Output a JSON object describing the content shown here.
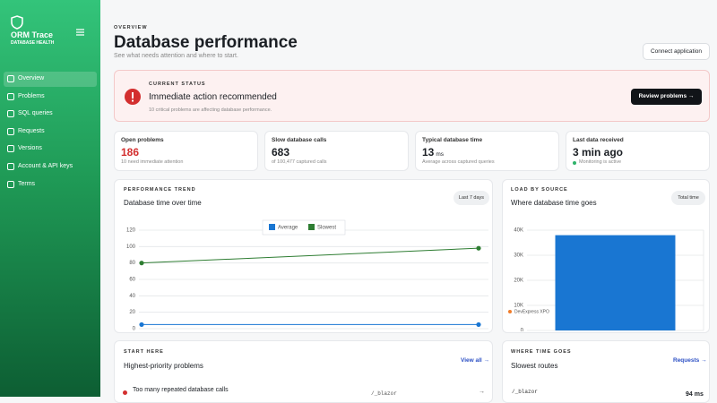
{
  "sidebar": {
    "brand": "ORM Trace",
    "tagline": "DATABASE HEALTH",
    "nav": [
      "Overview",
      "Problems",
      "SQL queries",
      "Requests",
      "Versions",
      "Account & API keys",
      "Terms"
    ]
  },
  "header": {
    "eyebrow": "OVERVIEW",
    "title": "Database performance",
    "subtitle": "See what needs attention and where to start.",
    "button": "Connect application"
  },
  "alert": {
    "eyebrow": "CURRENT STATUS",
    "title": "Immediate action recommended",
    "text": "10 critical problems are affecting database performance.",
    "button": "Review problems →"
  },
  "stats": [
    {
      "label": "Open problems",
      "value": "186",
      "note": "10 need immediate attention"
    },
    {
      "label": "Slow database calls",
      "value": "683",
      "note": "of 100,477 captured calls"
    },
    {
      "label": "Typical database time",
      "value": "13",
      "unit": "ms",
      "note": "Average across captured queries"
    },
    {
      "label": "Last data received",
      "value": "3 min ago",
      "note": "Monitoring is active"
    }
  ],
  "trend_chart": {
    "type": "line",
    "eyebrow": "PERFORMANCE TREND",
    "title": "Database time over time",
    "period": "Last 7 days",
    "categories": [
      null,
      null
    ],
    "series": [
      {
        "name": "Average",
        "color": "#1976d2",
        "values": [
          5,
          5
        ]
      },
      {
        "name": "Slowest",
        "color": "#2e7d32",
        "values": [
          80,
          98
        ]
      }
    ],
    "ylim": [
      0,
      120
    ],
    "yticks": [
      0,
      20,
      40,
      60,
      80,
      100,
      120
    ],
    "grid": true,
    "legend": "top"
  },
  "load_chart": {
    "type": "bar",
    "eyebrow": "LOAD BY SOURCE",
    "title": "Where database time goes",
    "period": "Total time",
    "categories": [
      "DevExpress XPO"
    ],
    "values": [
      38000
    ],
    "color": "#1976d2",
    "ylim": [
      0,
      40000
    ],
    "yticks": [
      {
        "value": 0,
        "label": "0"
      },
      {
        "value": 10000,
        "label": "10K"
      },
      {
        "value": 20000,
        "label": "20K"
      },
      {
        "value": 30000,
        "label": "30K"
      },
      {
        "value": 40000,
        "label": "40K"
      }
    ],
    "grid": true
  },
  "priority_problems": {
    "eyebrow": "START HERE",
    "title": "Highest-priority problems",
    "link": "View all →",
    "items": [
      {
        "title": "Too many repeated database calls",
        "route": "/_blazor"
      }
    ]
  },
  "slowest_routes": {
    "eyebrow": "WHERE TIME GOES",
    "title": "Slowest routes",
    "link": "Requests →",
    "items": [
      {
        "route": "/_blazor",
        "time": "94 ms"
      }
    ]
  }
}
